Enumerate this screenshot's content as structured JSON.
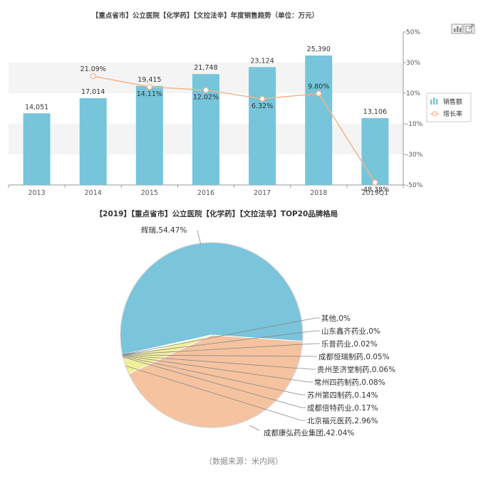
{
  "colors": {
    "bar": "#76c5da",
    "line": "#f3b48c",
    "band": "#f4f4f4",
    "axis": "#999999",
    "text": "#444444",
    "pie_slices": [
      "#7ac4dc",
      "#f5c3a0",
      "#f1ef9a",
      "#8fc8cf",
      "#c9dfa6",
      "#d7a9c2",
      "#a7c3e6",
      "#b6d9b1",
      "#e6c3a6",
      "#c8c8c8",
      "#9dd1dc"
    ]
  },
  "toolbar": {
    "icons": [
      "bar-chart-icon",
      "export-icon"
    ]
  },
  "chart_data": [
    {
      "type": "bar",
      "title": "【重点省市】公立医院【化学药】【文拉法辛】年度销售趋势（单位：万元）",
      "categories": [
        "2013",
        "2014",
        "2015",
        "2016",
        "2017",
        "2018",
        "2019Q1"
      ],
      "series": [
        {
          "name": "销售额",
          "type": "bar",
          "values": [
            14051,
            17014,
            19415,
            21748,
            23124,
            25390,
            13106
          ]
        },
        {
          "name": "增长率",
          "type": "line",
          "axis": "right",
          "values": [
            null,
            21.09,
            14.11,
            12.02,
            6.32,
            9.8,
            -48.38
          ]
        }
      ],
      "bar_labels": [
        "14,051",
        "17,014",
        "19,415",
        "21,748",
        "23,124",
        "25,390",
        "13,106"
      ],
      "rate_labels": [
        "",
        "21.09%",
        "14.11%",
        "12.02%",
        "6.32%",
        "9.80%",
        "-48.38%"
      ],
      "y_left_range": [
        0,
        30000
      ],
      "y_right_range": [
        -50,
        50
      ],
      "y_right_ticks": [
        "50%",
        "30%",
        "10%",
        "-10%",
        "-30%",
        "-50%"
      ],
      "legend_placement": "right",
      "grid": "alternating horizontal bands"
    },
    {
      "type": "pie",
      "title": "【2019】【重点省市】公立医院【化学药】【文拉法辛】TOP20品牌格局",
      "slices": [
        {
          "label": "辉瑞,54.47%",
          "value": 54.47
        },
        {
          "label": "成都康弘药业集团,42.04%",
          "value": 42.04
        },
        {
          "label": "北京福元医药,2.96%",
          "value": 2.96
        },
        {
          "label": "成都倍特药业,0.17%",
          "value": 0.17
        },
        {
          "label": "苏州第四制药,0.14%",
          "value": 0.14
        },
        {
          "label": "常州四药制药,0.08%",
          "value": 0.08
        },
        {
          "label": "贵州圣济堂制药,0.06%",
          "value": 0.06
        },
        {
          "label": "成都恒瑞制药,0.05%",
          "value": 0.05
        },
        {
          "label": "乐普药业,0.02%",
          "value": 0.02
        },
        {
          "label": "山东鑫齐药业,0%",
          "value": 0
        },
        {
          "label": "其他,0%",
          "value": 0
        }
      ]
    }
  ],
  "source_note": "（数据来源：米内网）"
}
